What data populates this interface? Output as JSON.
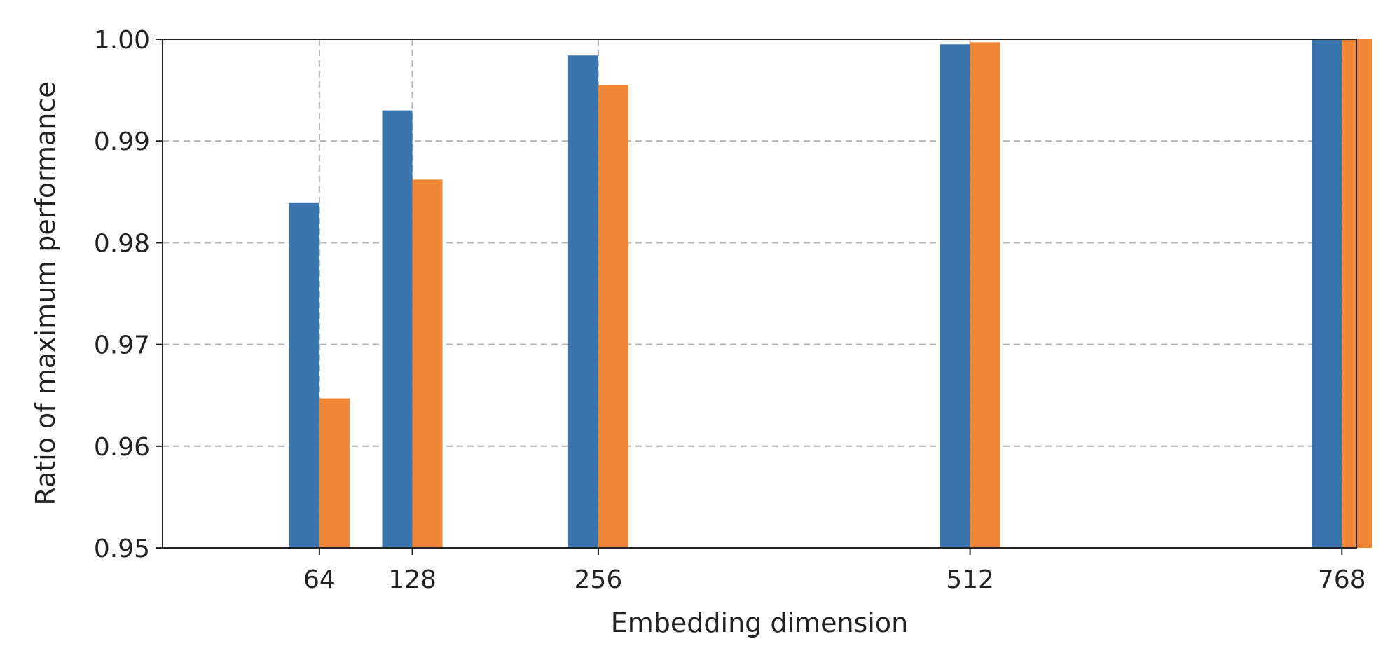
{
  "chart_data": {
    "type": "bar",
    "title": "",
    "xlabel": "Embedding dimension",
    "ylabel": "Ratio of maximum performance",
    "x": [
      64,
      128,
      256,
      512,
      768
    ],
    "x_tick_labels": [
      "64",
      "128",
      "256",
      "512",
      "768"
    ],
    "xlim": [
      -44,
      778
    ],
    "ylim": [
      0.95,
      1.0
    ],
    "y_ticks": [
      0.95,
      0.96,
      0.97,
      0.98,
      0.99,
      1.0
    ],
    "y_tick_labels": [
      "0.95",
      "0.96",
      "0.97",
      "0.98",
      "0.99",
      "1.00"
    ],
    "grid": true,
    "legend": "none",
    "series": [
      {
        "color": "#3b75af",
        "values": [
          0.9839,
          0.993,
          0.9984,
          0.9995,
          1.0
        ]
      },
      {
        "color": "#ef8636",
        "values": [
          0.9647,
          0.9862,
          0.9955,
          0.9997,
          1.0
        ]
      }
    ]
  }
}
